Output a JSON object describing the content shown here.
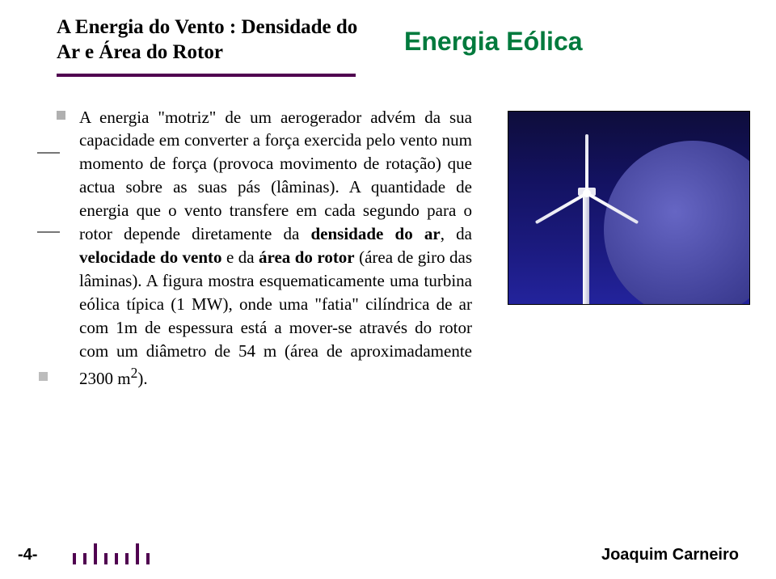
{
  "header": {
    "left_title": "A Energia do Vento : Densidade do Ar e Área do Rotor",
    "right_title": "Energia Eólica"
  },
  "body": {
    "para_pre": "A energia \"motriz\" de um aerogerador advém da sua capacidade em converter a força exercida pelo vento num momento de força (provoca movimento de rotação) que actua sobre as suas pás (lâminas). A quantidade de energia que o vento transfere em cada segundo para o rotor depende diretamente da ",
    "b1": "densidade do ar",
    "mid1": ", da ",
    "b2": "velocidade do vento",
    "mid2": " e da ",
    "b3": "área do rotor",
    "para_post": " (área de giro das lâminas). A figura mostra esquematicamente uma turbina eólica típica (1 MW), onde uma \"fatia\" cilíndrica de ar com 1m de espessura está a mover-se através do rotor com um diâmetro de 54 m (área de aproximadamente 2300 m",
    "sup": "2",
    "post_sup": ")."
  },
  "footer": {
    "page": "-4-",
    "author": "Joaquim Carneiro"
  },
  "colors": {
    "accent_green": "#007a3d",
    "rule_purple": "#500050"
  }
}
